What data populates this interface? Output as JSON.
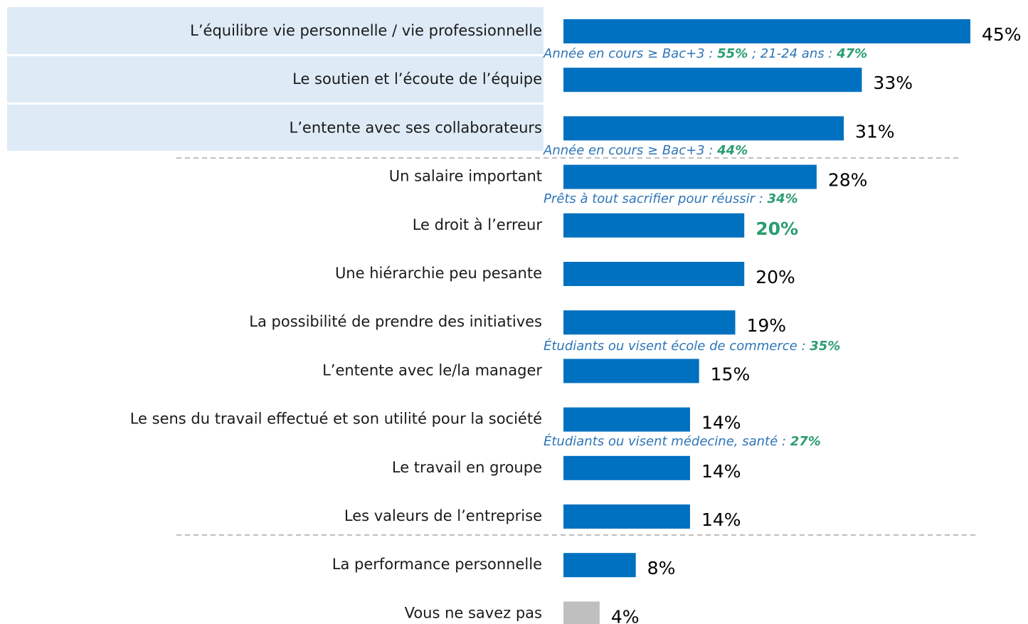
{
  "chart_data": {
    "type": "hbar",
    "categories": [
      "L’équilibre vie personnelle / vie professionnelle",
      "Le soutien et l’écoute de l’équipe",
      "L’entente avec ses collaborateurs",
      "Un salaire important",
      "Le droit à l’erreur",
      "Une hiérarchie peu pesante",
      "La possibilité de prendre des initiatives",
      "L’entente avec le/la manager",
      "Le sens du travail effectué et son utilité pour la société",
      "Le travail en groupe",
      "Les valeurs de l’entreprise",
      "La performance personnelle",
      "Vous ne savez pas"
    ],
    "values": [
      45,
      33,
      31,
      28,
      20,
      20,
      19,
      15,
      14,
      14,
      14,
      8,
      4
    ],
    "value_labels": [
      "45%",
      "33%",
      "31%",
      "28%",
      "20%",
      "20%",
      "19%",
      "15%",
      "14%",
      "14%",
      "14%",
      "8%",
      "4%"
    ],
    "colors": [
      "#0070c0",
      "#0070c0",
      "#0070c0",
      "#0070c0",
      "#0070c0",
      "#0070c0",
      "#0070c0",
      "#0070c0",
      "#0070c0",
      "#0070c0",
      "#0070c0",
      "#0070c0",
      "#bfbfbf"
    ],
    "highlight_index": 4,
    "annotations": [
      {
        "parts": [
          {
            "text": "Année en cours ≥ Bac+3 : "
          },
          {
            "text": "55%",
            "emphasis": true
          },
          {
            "text": " ; 21-24 ans : "
          },
          {
            "text": "47%",
            "emphasis": true
          }
        ]
      },
      {
        "parts": [
          {
            "text": "Année en cours ≥ Bac+3 : "
          },
          {
            "text": "44%",
            "emphasis": true
          }
        ]
      },
      {
        "parts": [
          {
            "text": "Prêts à tout sacrifier pour réussir : "
          },
          {
            "text": "34%",
            "emphasis": true
          }
        ]
      },
      {
        "parts": [
          {
            "text": "Étudiants ou visent école de commerce : "
          },
          {
            "text": "35%",
            "emphasis": true
          }
        ]
      },
      {
        "parts": [
          {
            "text": "Étudiants ou visent médecine, santé : "
          },
          {
            "text": "27%",
            "emphasis": true
          }
        ]
      }
    ]
  }
}
